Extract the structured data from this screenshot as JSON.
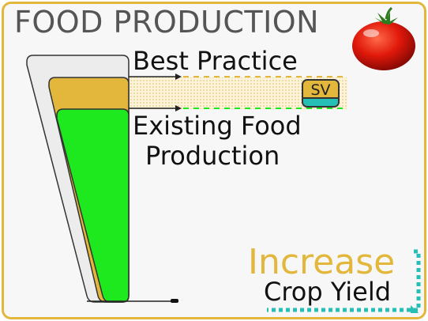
{
  "title": "FOOD PRODUCTION",
  "labels": {
    "best_practice": "Best Practice",
    "existing_line1": "Existing Food",
    "existing_line2": "Production",
    "increase": "Increase",
    "crop_yield": "Crop Yield"
  },
  "badge": {
    "text": "SV"
  },
  "icons": {
    "tomato": "tomato-icon"
  },
  "colors": {
    "accent": "#e2b73c",
    "existing_fill": "#1ee81e",
    "best_fill": "#e2b73c",
    "teal": "#25bfb5",
    "frame": "#e2b73c"
  }
}
